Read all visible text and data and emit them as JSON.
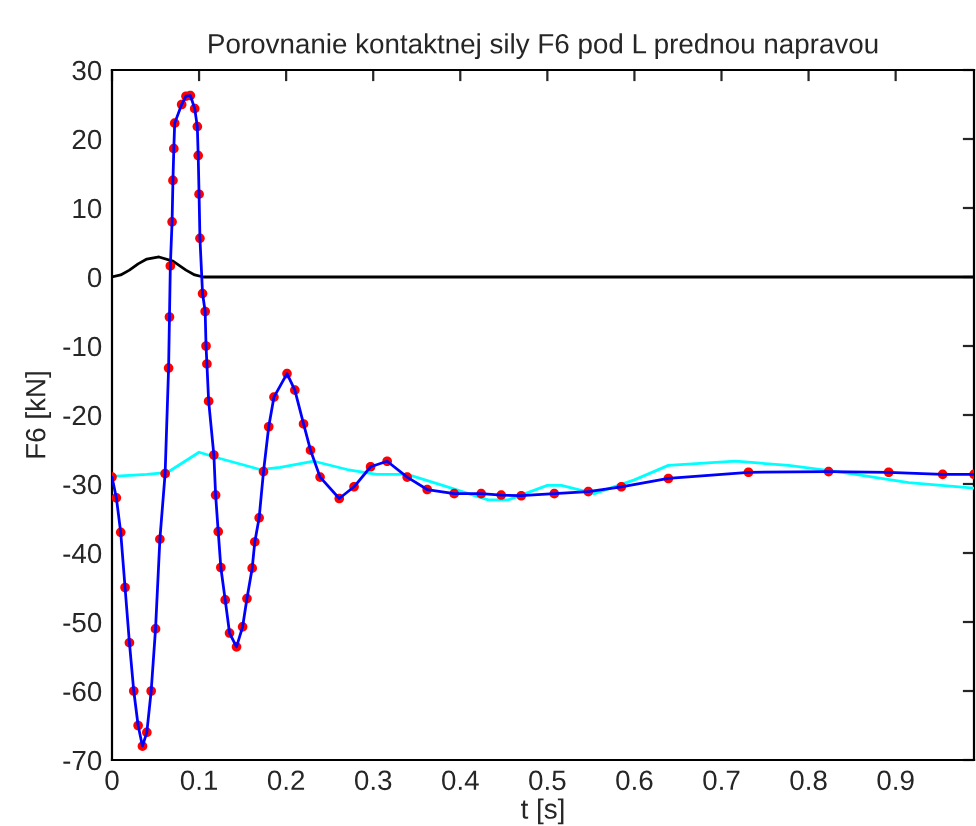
{
  "chart_data": {
    "type": "line",
    "title": "Porovnanie kontaktnej sily F6 pod L prednou napravou",
    "xlabel": "t [s]",
    "ylabel": "F6 [kN]",
    "xlim": [
      0,
      0.99
    ],
    "ylim": [
      -70,
      30
    ],
    "xticks": [
      0,
      0.1,
      0.2,
      0.3,
      0.4,
      0.5,
      0.6,
      0.7,
      0.8,
      0.9
    ],
    "yticks": [
      -70,
      -60,
      -50,
      -40,
      -30,
      -20,
      -10,
      0,
      10,
      20,
      30
    ],
    "grid": false,
    "legend": false,
    "series": [
      {
        "color": "#000000",
        "x": [
          0,
          0.01,
          0.02,
          0.03,
          0.04,
          0.054,
          0.07,
          0.085,
          0.095,
          0.105,
          0.99
        ],
        "values": [
          0,
          0.3,
          1.0,
          1.9,
          2.6,
          2.9,
          2.3,
          1.0,
          0.3,
          0,
          0
        ]
      },
      {
        "color": "#00ffff",
        "x": [
          0,
          0.04,
          0.064,
          0.1,
          0.124,
          0.17,
          0.193,
          0.232,
          0.27,
          0.304,
          0.339,
          0.377,
          0.432,
          0.455,
          0.5,
          0.516,
          0.554,
          0.6,
          0.639,
          0.716,
          0.777,
          0.839,
          0.915,
          0.99
        ],
        "values": [
          -28.9,
          -28.6,
          -28.3,
          -25.4,
          -26.3,
          -27.9,
          -27.6,
          -26.7,
          -27.9,
          -28.6,
          -28.6,
          -30.1,
          -32.3,
          -32.3,
          -30.2,
          -30.2,
          -31.4,
          -29.4,
          -27.3,
          -26.7,
          -27.3,
          -28.3,
          -29.8,
          -30.6
        ]
      },
      {
        "type": "scatter",
        "marker": "circle",
        "color": "#ff0000",
        "x": [
          0,
          0.005,
          0.01,
          0.015,
          0.02,
          0.025,
          0.03,
          0.035,
          0.04,
          0.045,
          0.05,
          0.055,
          0.061,
          0.065,
          0.066,
          0.067,
          0.069,
          0.07,
          0.071,
          0.072,
          0.08,
          0.085,
          0.09,
          0.095,
          0.098,
          0.099,
          0.1,
          0.101,
          0.104,
          0.107,
          0.108,
          0.109,
          0.111,
          0.117,
          0.119,
          0.122,
          0.125,
          0.13,
          0.135,
          0.143,
          0.15,
          0.155,
          0.161,
          0.164,
          0.169,
          0.174,
          0.18,
          0.186,
          0.201,
          0.21,
          0.22,
          0.228,
          0.239,
          0.261,
          0.278,
          0.297,
          0.316,
          0.339,
          0.362,
          0.393,
          0.424,
          0.447,
          0.47,
          0.508,
          0.547,
          0.585,
          0.639,
          0.731,
          0.823,
          0.892,
          0.954,
          0.99
        ],
        "values": [
          -29,
          -32,
          -37,
          -45,
          -53,
          -60,
          -65,
          -68,
          -66,
          -60,
          -51,
          -38,
          -28.5,
          -13.2,
          -5.8,
          1.6,
          8,
          14,
          18.6,
          22.3,
          25,
          26.2,
          26.3,
          24.4,
          21.8,
          17.6,
          12,
          5.6,
          -2.4,
          -5,
          -10,
          -12.6,
          -18,
          -25.8,
          -31.6,
          -36.9,
          -42.1,
          -46.8,
          -51.6,
          -53.6,
          -50.7,
          -46.6,
          -42.2,
          -38.4,
          -34.9,
          -28.2,
          -21.7,
          -17.4,
          -14,
          -16.4,
          -21.3,
          -25.1,
          -29,
          -32.1,
          -30.4,
          -27.5,
          -26.7,
          -29,
          -30.8,
          -31.4,
          -31.4,
          -31.6,
          -31.7,
          -31.4,
          -31.1,
          -30.4,
          -29.2,
          -28.3,
          -28.2,
          -28.3,
          -28.6,
          -28.6
        ]
      },
      {
        "color": "#0000ff",
        "x": [
          0,
          0.005,
          0.01,
          0.015,
          0.02,
          0.025,
          0.03,
          0.035,
          0.04,
          0.045,
          0.05,
          0.055,
          0.061,
          0.065,
          0.066,
          0.067,
          0.069,
          0.07,
          0.071,
          0.072,
          0.08,
          0.085,
          0.09,
          0.095,
          0.098,
          0.099,
          0.1,
          0.101,
          0.104,
          0.107,
          0.108,
          0.109,
          0.111,
          0.117,
          0.119,
          0.122,
          0.125,
          0.13,
          0.135,
          0.143,
          0.15,
          0.155,
          0.161,
          0.164,
          0.169,
          0.174,
          0.18,
          0.186,
          0.201,
          0.21,
          0.22,
          0.228,
          0.239,
          0.261,
          0.278,
          0.297,
          0.316,
          0.339,
          0.362,
          0.393,
          0.424,
          0.447,
          0.47,
          0.508,
          0.547,
          0.585,
          0.639,
          0.731,
          0.823,
          0.892,
          0.954,
          0.99
        ],
        "values": [
          -29,
          -32,
          -37,
          -45,
          -53,
          -60,
          -65,
          -68,
          -66,
          -60,
          -51,
          -38,
          -28.5,
          -13.2,
          -5.8,
          1.6,
          8,
          14,
          18.6,
          22.3,
          25,
          26.2,
          26.3,
          24.4,
          21.8,
          17.6,
          12,
          5.6,
          -2.4,
          -5,
          -10,
          -12.6,
          -18,
          -25.8,
          -31.6,
          -36.9,
          -42.1,
          -46.8,
          -51.6,
          -53.6,
          -50.7,
          -46.6,
          -42.2,
          -38.4,
          -34.9,
          -28.2,
          -21.7,
          -17.4,
          -14,
          -16.4,
          -21.3,
          -25.1,
          -29,
          -32.1,
          -30.4,
          -27.5,
          -26.7,
          -29,
          -30.8,
          -31.4,
          -31.4,
          -31.6,
          -31.7,
          -31.4,
          -31.1,
          -30.4,
          -29.2,
          -28.3,
          -28.2,
          -28.3,
          -28.6,
          -28.6
        ]
      }
    ]
  }
}
